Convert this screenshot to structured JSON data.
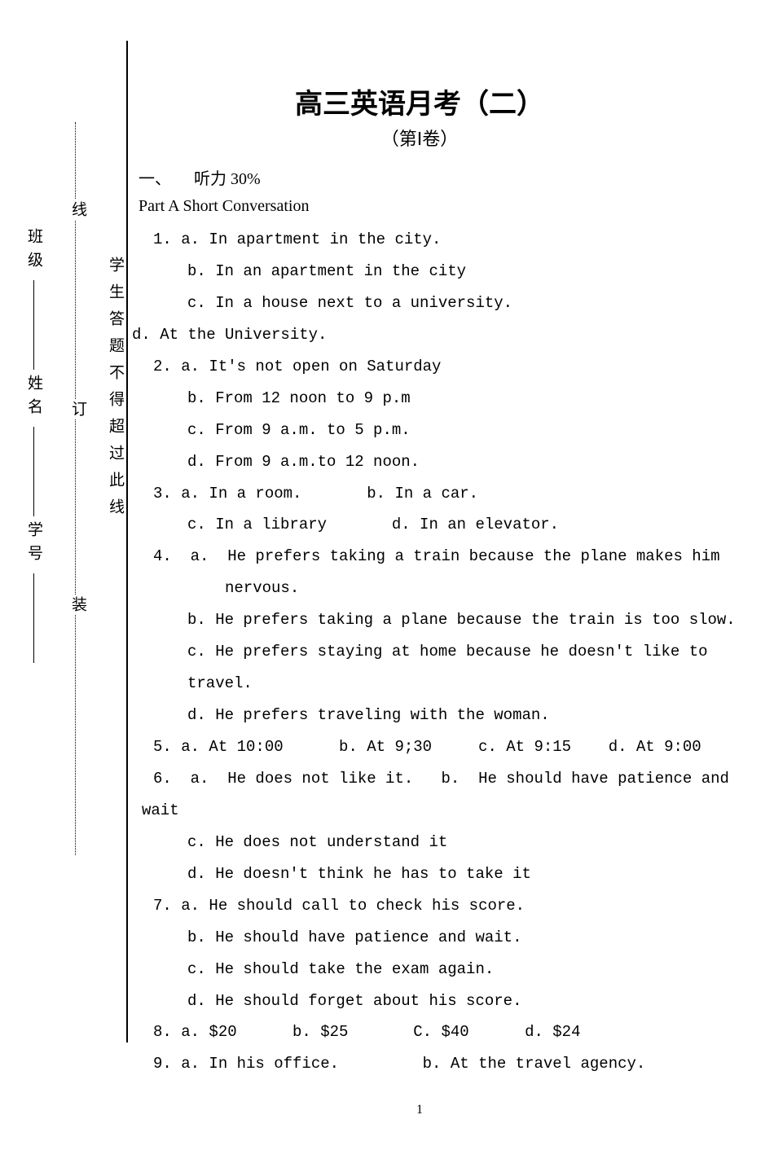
{
  "title": "高三英语月考（二）",
  "subtitle": "（第Ⅰ卷）",
  "section": {
    "num": "一、",
    "label": "听力 30%"
  },
  "part": "Part A  Short Conversation",
  "binding": {
    "outer_labels": [
      "班级",
      "姓名",
      "学号"
    ],
    "outer_marks": [
      "装",
      "订",
      "线"
    ],
    "inner_text": "学生答题不得超过此线"
  },
  "lines": [
    {
      "cls": "q-indent-1",
      "t": "1. a. In apartment in the city."
    },
    {
      "cls": "q-indent-2",
      "t": "b. In an apartment in the city"
    },
    {
      "cls": "q-indent-2",
      "t": "c. In a house next to a university."
    },
    {
      "cls": "q-neg",
      "t": "d. At the University."
    },
    {
      "cls": "q-indent-1",
      "t": "2. a. It's not open on Saturday"
    },
    {
      "cls": "q-indent-2",
      "t": "b. From 12 noon to 9 p.m"
    },
    {
      "cls": "q-indent-2",
      "t": "c. From 9 a.m. to 5 p.m."
    },
    {
      "cls": "q-indent-2",
      "t": "d. From 9 a.m.to 12 noon."
    },
    {
      "cls": "q-indent-1",
      "t": "3. a. In a room.       b. In a car."
    },
    {
      "cls": "q-indent-2",
      "t": "c. In a library       d. In an elevator."
    },
    {
      "cls": "q-indent-1",
      "t": "4.  a.  He prefers taking a train because the plane makes him"
    },
    {
      "cls": "q-indent-3",
      "t": "nervous."
    },
    {
      "cls": "q-indent-2",
      "t": "b. He prefers taking a plane because the train is too slow."
    },
    {
      "cls": "q-indent-2",
      "t": "c. He prefers staying at home because he doesn't like to"
    },
    {
      "cls": "q-indent-2",
      "t": "travel."
    },
    {
      "cls": "q-indent-2",
      "t": "d. He prefers traveling with the woman."
    },
    {
      "cls": "q-indent-1",
      "t": "5. a. At 10:00      b. At 9;30     c. At 9:15    d. At 9:00"
    },
    {
      "cls": "q-indent-1",
      "t": "6.  a.  He does not like it.   b.  He should have patience and"
    },
    {
      "cls": "q-indent-0",
      "t": "wait"
    },
    {
      "cls": "q-indent-2",
      "t": "c. He does not understand it"
    },
    {
      "cls": "q-indent-2",
      "t": "d. He doesn't think he has to take it"
    },
    {
      "cls": "q-indent-1",
      "t": "7. a. He should call to check his score."
    },
    {
      "cls": "q-indent-2",
      "t": "b. He should have patience and wait."
    },
    {
      "cls": "q-indent-2",
      "t": "c. He should take the exam again."
    },
    {
      "cls": "q-indent-2",
      "t": "d. He should forget about his score."
    },
    {
      "cls": "q-indent-1",
      "t": "8. a. $20      b. $25       C. $40      d. $24"
    },
    {
      "cls": "q-indent-1",
      "t": "9. a. In his office.         b. At the travel agency."
    }
  ],
  "page_number": "1"
}
